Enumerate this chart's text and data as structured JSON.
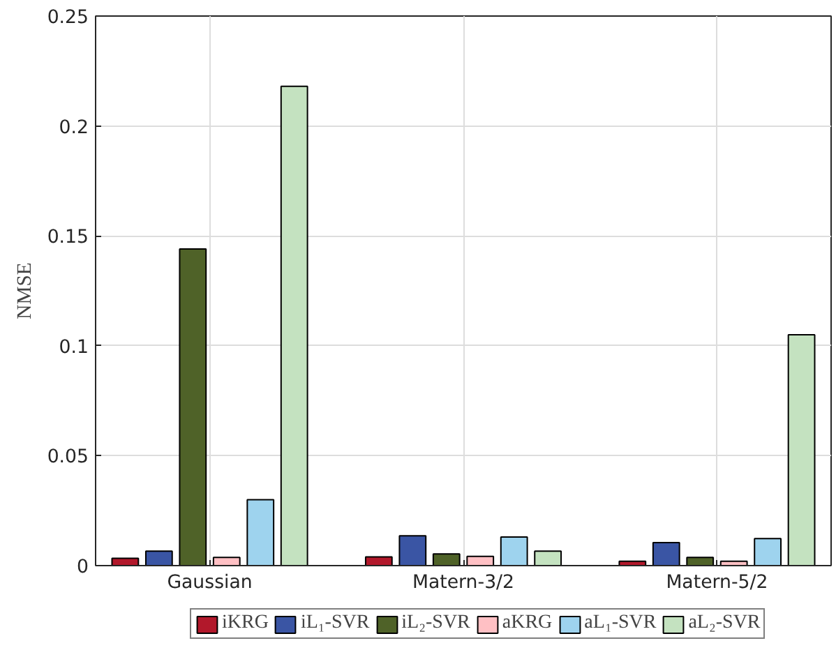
{
  "chart_data": {
    "type": "bar",
    "ylabel": "NMSE",
    "categories": [
      "Gaussian",
      "Matern-3/2",
      "Matern-5/2"
    ],
    "series": [
      {
        "name": "iKRG",
        "color": "#b2182b",
        "values": [
          0.0033,
          0.004,
          0.002
        ]
      },
      {
        "name": "iL₁-SVR",
        "color": "#3a55a4",
        "values": [
          0.0066,
          0.0136,
          0.0105
        ]
      },
      {
        "name": "iL₂-SVR",
        "color": "#4f6228",
        "values": [
          0.144,
          0.0053,
          0.0037
        ]
      },
      {
        "name": "aKRG",
        "color": "#ffc0c4",
        "values": [
          0.0037,
          0.0042,
          0.002
        ]
      },
      {
        "name": "aL₁-SVR",
        "color": "#9ed3ee",
        "values": [
          0.03,
          0.013,
          0.0123
        ]
      },
      {
        "name": "aL₂-SVR",
        "color": "#c4e2c0",
        "values": [
          0.218,
          0.0066,
          0.105
        ]
      }
    ],
    "ylim": [
      0,
      0.25
    ],
    "yticks": [
      0,
      0.05,
      0.1,
      0.15,
      0.2,
      0.25
    ],
    "grid": true,
    "legend": "bottom"
  }
}
